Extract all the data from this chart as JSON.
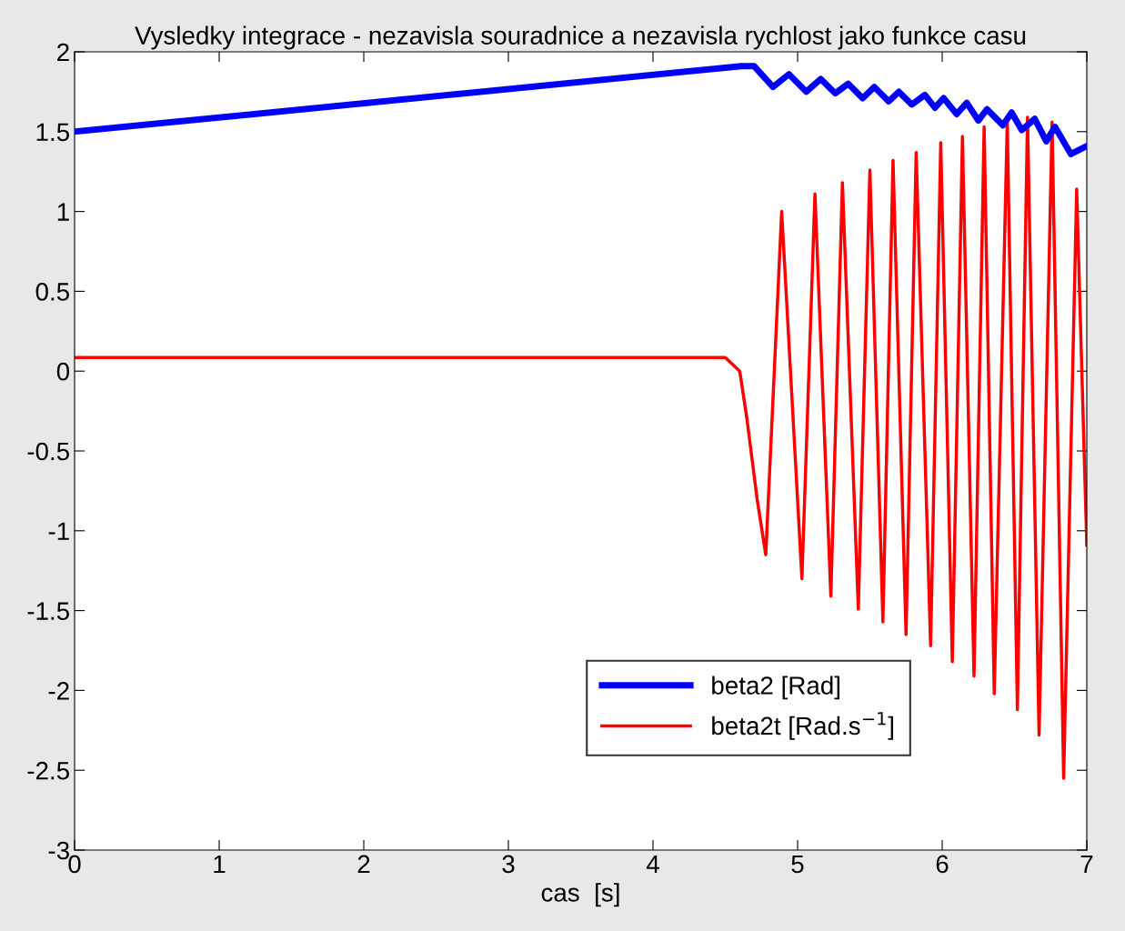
{
  "chart_data": {
    "type": "line",
    "title": "Vysledky integrace - nezavisla souradnice a nezavisla rychlost jako funkce casu",
    "xlabel": "cas  [s]",
    "xlim": [
      0,
      7
    ],
    "xticks": [
      0,
      1,
      2,
      3,
      4,
      5,
      6,
      7
    ],
    "ylim": [
      -3,
      2
    ],
    "yticks": [
      -3,
      -2.5,
      -2,
      -1.5,
      -1,
      -0.5,
      0,
      0.5,
      1,
      1.5,
      2
    ],
    "grid": false,
    "legend": "bottom right",
    "marker": "none",
    "line_style": "solid",
    "series": [
      {
        "name": "beta2 [Rad]",
        "color": "#0000ff",
        "x": [
          0,
          4.61,
          4.7,
          4.83,
          4.94,
          5.06,
          5.16,
          5.26,
          5.35,
          5.45,
          5.53,
          5.63,
          5.7,
          5.79,
          5.88,
          5.95,
          6.01,
          6.1,
          6.17,
          6.25,
          6.31,
          6.42,
          6.48,
          6.55,
          6.64,
          6.72,
          6.78,
          6.89,
          7.0
        ],
        "values": [
          1.5,
          1.91,
          1.91,
          1.78,
          1.86,
          1.75,
          1.83,
          1.74,
          1.8,
          1.71,
          1.78,
          1.69,
          1.75,
          1.67,
          1.73,
          1.65,
          1.71,
          1.61,
          1.68,
          1.57,
          1.64,
          1.54,
          1.62,
          1.51,
          1.58,
          1.44,
          1.53,
          1.36,
          1.41
        ]
      },
      {
        "name": "beta2t [Rad.s$^{−1}$]",
        "color": "#ff0000",
        "x": [
          0,
          4.5,
          4.6,
          4.65,
          4.72,
          4.78,
          4.89,
          5.03,
          5.12,
          5.23,
          5.31,
          5.42,
          5.5,
          5.59,
          5.66,
          5.75,
          5.82,
          5.92,
          5.99,
          6.07,
          6.14,
          6.22,
          6.29,
          6.36,
          6.45,
          6.52,
          6.59,
          6.67,
          6.76,
          6.84,
          6.93,
          7.0
        ],
        "values": [
          0.085,
          0.085,
          0.0,
          -0.3,
          -0.8,
          -1.15,
          1.0,
          -1.3,
          1.11,
          -1.41,
          1.18,
          -1.49,
          1.26,
          -1.57,
          1.32,
          -1.65,
          1.37,
          -1.72,
          1.43,
          -1.82,
          1.47,
          -1.91,
          1.53,
          -2.02,
          1.56,
          -2.12,
          1.59,
          -2.28,
          1.56,
          -2.55,
          1.14,
          -1.09
        ]
      }
    ]
  }
}
